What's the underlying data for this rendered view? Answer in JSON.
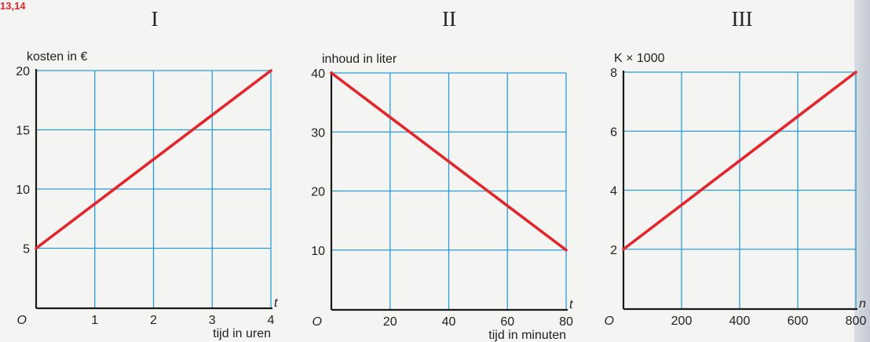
{
  "exercise_ref": "13,14",
  "colors": {
    "grid": "#2b9bd6",
    "line": "#e3262c",
    "axis": "#1a1a1a",
    "text": "#222222"
  },
  "chart_data": [
    {
      "type": "line",
      "title": "I",
      "ylabel": "kosten in €",
      "xlabel": "tijd in uren",
      "x_var": "t",
      "origin_label": "O",
      "xlim": [
        0,
        4
      ],
      "ylim": [
        0,
        20
      ],
      "x_ticks": [
        1,
        2,
        3,
        4
      ],
      "y_ticks": [
        5,
        10,
        15,
        20
      ],
      "x_tick_labels": [
        "1",
        "2",
        "3",
        "4"
      ],
      "y_tick_labels": [
        "5",
        "10",
        "15",
        "20"
      ],
      "x_grid": [
        1,
        2,
        3,
        4
      ],
      "y_grid": [
        5,
        10,
        15,
        20
      ],
      "grid": true,
      "series": [
        {
          "x": [
            0,
            4
          ],
          "y": [
            5,
            20
          ]
        }
      ]
    },
    {
      "type": "line",
      "title": "II",
      "ylabel": "inhoud in liter",
      "xlabel": "tijd in minuten",
      "x_var": "t",
      "origin_label": "O",
      "xlim": [
        0,
        80
      ],
      "ylim": [
        0,
        40
      ],
      "x_ticks": [
        20,
        40,
        60,
        80
      ],
      "y_ticks": [
        10,
        20,
        30,
        40
      ],
      "x_tick_labels": [
        "20",
        "40",
        "60",
        "80"
      ],
      "y_tick_labels": [
        "10",
        "20",
        "30",
        "40"
      ],
      "x_grid": [
        20,
        40,
        60,
        80
      ],
      "y_grid": [
        10,
        20,
        30,
        40
      ],
      "grid": true,
      "series": [
        {
          "x": [
            0,
            80
          ],
          "y": [
            40,
            10
          ]
        }
      ]
    },
    {
      "type": "line",
      "title": "III",
      "ylabel": "K × 1000",
      "xlabel": "",
      "x_var": "n",
      "origin_label": "O",
      "xlim": [
        0,
        800
      ],
      "ylim": [
        0,
        8
      ],
      "x_ticks": [
        200,
        400,
        600,
        800
      ],
      "y_ticks": [
        2,
        4,
        6,
        8
      ],
      "x_tick_labels": [
        "200",
        "400",
        "600",
        "800"
      ],
      "y_tick_labels": [
        "2",
        "4",
        "6",
        "8"
      ],
      "x_grid": [
        200,
        400,
        600,
        800
      ],
      "y_grid": [
        2,
        4,
        6,
        8
      ],
      "grid": true,
      "series": [
        {
          "x": [
            0,
            800
          ],
          "y": [
            2,
            8
          ]
        }
      ]
    }
  ]
}
